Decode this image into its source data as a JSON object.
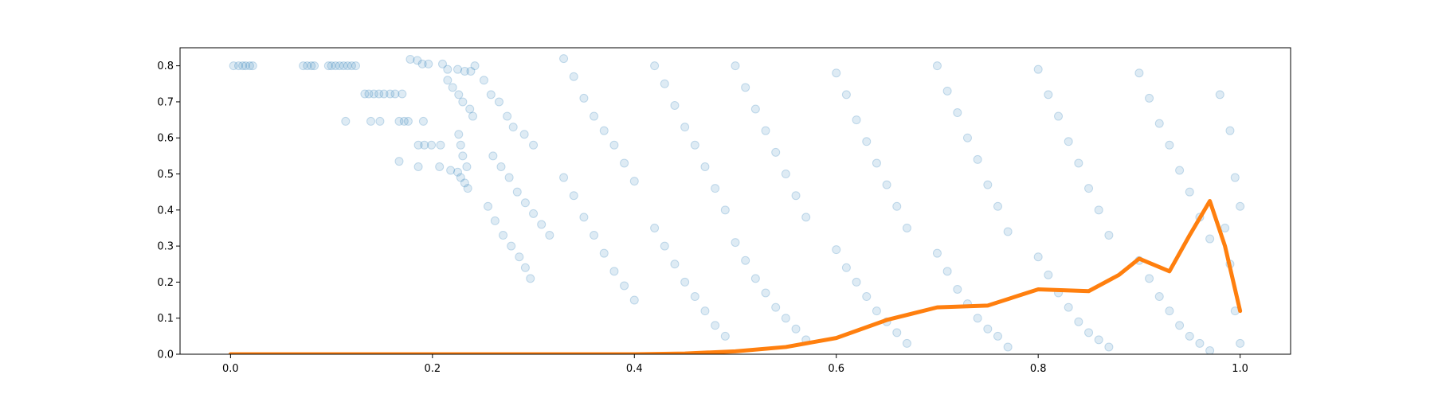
{
  "chart_data": {
    "type": "scatter",
    "title": "",
    "xlabel": "",
    "ylabel": "",
    "xlim": [
      -0.05,
      1.05
    ],
    "ylim": [
      0.0,
      0.85
    ],
    "xticks": [
      {
        "value": 0.0,
        "label": "0.0"
      },
      {
        "value": 0.2,
        "label": "0.2"
      },
      {
        "value": 0.4,
        "label": "0.4"
      },
      {
        "value": 0.6,
        "label": "0.6"
      },
      {
        "value": 0.8,
        "label": "0.8"
      },
      {
        "value": 1.0,
        "label": "1.0"
      }
    ],
    "yticks": [
      {
        "value": 0.0,
        "label": "0.0"
      },
      {
        "value": 0.1,
        "label": "0.1"
      },
      {
        "value": 0.2,
        "label": "0.2"
      },
      {
        "value": 0.3,
        "label": "0.3"
      },
      {
        "value": 0.4,
        "label": "0.4"
      },
      {
        "value": 0.5,
        "label": "0.5"
      },
      {
        "value": 0.6,
        "label": "0.6"
      },
      {
        "value": 0.7,
        "label": "0.7"
      },
      {
        "value": 0.8,
        "label": "0.8"
      }
    ],
    "grid": false,
    "legend": null,
    "series": [
      {
        "kind": "scatter",
        "color": "#1f77b4",
        "alpha": 0.15,
        "points": [
          [
            0.003,
            0.8
          ],
          [
            0.008,
            0.8
          ],
          [
            0.012,
            0.8
          ],
          [
            0.015,
            0.8
          ],
          [
            0.019,
            0.8
          ],
          [
            0.022,
            0.8
          ],
          [
            0.072,
            0.8
          ],
          [
            0.076,
            0.8
          ],
          [
            0.08,
            0.8
          ],
          [
            0.083,
            0.8
          ],
          [
            0.097,
            0.8
          ],
          [
            0.1,
            0.8
          ],
          [
            0.104,
            0.8
          ],
          [
            0.108,
            0.8
          ],
          [
            0.112,
            0.8
          ],
          [
            0.116,
            0.8
          ],
          [
            0.12,
            0.8
          ],
          [
            0.124,
            0.8
          ],
          [
            0.178,
            0.818
          ],
          [
            0.185,
            0.815
          ],
          [
            0.19,
            0.805
          ],
          [
            0.196,
            0.805
          ],
          [
            0.21,
            0.805
          ],
          [
            0.215,
            0.79
          ],
          [
            0.225,
            0.79
          ],
          [
            0.232,
            0.785
          ],
          [
            0.238,
            0.785
          ],
          [
            0.133,
            0.722
          ],
          [
            0.137,
            0.722
          ],
          [
            0.142,
            0.722
          ],
          [
            0.147,
            0.722
          ],
          [
            0.152,
            0.722
          ],
          [
            0.158,
            0.722
          ],
          [
            0.163,
            0.722
          ],
          [
            0.17,
            0.722
          ],
          [
            0.114,
            0.646
          ],
          [
            0.139,
            0.646
          ],
          [
            0.148,
            0.646
          ],
          [
            0.167,
            0.646
          ],
          [
            0.172,
            0.646
          ],
          [
            0.176,
            0.646
          ],
          [
            0.191,
            0.646
          ],
          [
            0.186,
            0.58
          ],
          [
            0.192,
            0.58
          ],
          [
            0.199,
            0.58
          ],
          [
            0.208,
            0.58
          ],
          [
            0.167,
            0.535
          ],
          [
            0.186,
            0.52
          ],
          [
            0.207,
            0.52
          ],
          [
            0.218,
            0.51
          ],
          [
            0.225,
            0.505
          ],
          [
            0.228,
            0.49
          ],
          [
            0.232,
            0.475
          ],
          [
            0.235,
            0.46
          ],
          [
            0.215,
            0.76
          ],
          [
            0.22,
            0.74
          ],
          [
            0.226,
            0.72
          ],
          [
            0.23,
            0.7
          ],
          [
            0.237,
            0.68
          ],
          [
            0.24,
            0.66
          ],
          [
            0.226,
            0.61
          ],
          [
            0.228,
            0.58
          ],
          [
            0.23,
            0.55
          ],
          [
            0.234,
            0.52
          ],
          [
            0.242,
            0.8
          ],
          [
            0.251,
            0.76
          ],
          [
            0.258,
            0.72
          ],
          [
            0.266,
            0.7
          ],
          [
            0.274,
            0.66
          ],
          [
            0.28,
            0.63
          ],
          [
            0.291,
            0.61
          ],
          [
            0.3,
            0.58
          ],
          [
            0.26,
            0.55
          ],
          [
            0.268,
            0.52
          ],
          [
            0.276,
            0.49
          ],
          [
            0.284,
            0.45
          ],
          [
            0.292,
            0.42
          ],
          [
            0.3,
            0.39
          ],
          [
            0.308,
            0.36
          ],
          [
            0.316,
            0.33
          ],
          [
            0.255,
            0.41
          ],
          [
            0.262,
            0.37
          ],
          [
            0.27,
            0.33
          ],
          [
            0.278,
            0.3
          ],
          [
            0.286,
            0.27
          ],
          [
            0.292,
            0.24
          ],
          [
            0.297,
            0.21
          ],
          [
            0.33,
            0.82
          ],
          [
            0.34,
            0.77
          ],
          [
            0.35,
            0.71
          ],
          [
            0.36,
            0.66
          ],
          [
            0.37,
            0.62
          ],
          [
            0.38,
            0.58
          ],
          [
            0.39,
            0.53
          ],
          [
            0.4,
            0.48
          ],
          [
            0.33,
            0.49
          ],
          [
            0.34,
            0.44
          ],
          [
            0.35,
            0.38
          ],
          [
            0.36,
            0.33
          ],
          [
            0.37,
            0.28
          ],
          [
            0.38,
            0.23
          ],
          [
            0.39,
            0.19
          ],
          [
            0.4,
            0.15
          ],
          [
            0.42,
            0.8
          ],
          [
            0.43,
            0.75
          ],
          [
            0.44,
            0.69
          ],
          [
            0.45,
            0.63
          ],
          [
            0.46,
            0.58
          ],
          [
            0.47,
            0.52
          ],
          [
            0.48,
            0.46
          ],
          [
            0.49,
            0.4
          ],
          [
            0.42,
            0.35
          ],
          [
            0.43,
            0.3
          ],
          [
            0.44,
            0.25
          ],
          [
            0.45,
            0.2
          ],
          [
            0.46,
            0.16
          ],
          [
            0.47,
            0.12
          ],
          [
            0.48,
            0.08
          ],
          [
            0.49,
            0.05
          ],
          [
            0.5,
            0.8
          ],
          [
            0.51,
            0.74
          ],
          [
            0.52,
            0.68
          ],
          [
            0.53,
            0.62
          ],
          [
            0.54,
            0.56
          ],
          [
            0.55,
            0.5
          ],
          [
            0.56,
            0.44
          ],
          [
            0.57,
            0.38
          ],
          [
            0.5,
            0.31
          ],
          [
            0.51,
            0.26
          ],
          [
            0.52,
            0.21
          ],
          [
            0.53,
            0.17
          ],
          [
            0.54,
            0.13
          ],
          [
            0.55,
            0.1
          ],
          [
            0.56,
            0.07
          ],
          [
            0.57,
            0.04
          ],
          [
            0.6,
            0.78
          ],
          [
            0.61,
            0.72
          ],
          [
            0.62,
            0.65
          ],
          [
            0.63,
            0.59
          ],
          [
            0.64,
            0.53
          ],
          [
            0.65,
            0.47
          ],
          [
            0.66,
            0.41
          ],
          [
            0.67,
            0.35
          ],
          [
            0.6,
            0.29
          ],
          [
            0.61,
            0.24
          ],
          [
            0.62,
            0.2
          ],
          [
            0.63,
            0.16
          ],
          [
            0.64,
            0.12
          ],
          [
            0.65,
            0.09
          ],
          [
            0.66,
            0.06
          ],
          [
            0.67,
            0.03
          ],
          [
            0.7,
            0.8
          ],
          [
            0.71,
            0.73
          ],
          [
            0.72,
            0.67
          ],
          [
            0.73,
            0.6
          ],
          [
            0.74,
            0.54
          ],
          [
            0.75,
            0.47
          ],
          [
            0.76,
            0.41
          ],
          [
            0.77,
            0.34
          ],
          [
            0.7,
            0.28
          ],
          [
            0.71,
            0.23
          ],
          [
            0.72,
            0.18
          ],
          [
            0.73,
            0.14
          ],
          [
            0.74,
            0.1
          ],
          [
            0.75,
            0.07
          ],
          [
            0.76,
            0.05
          ],
          [
            0.77,
            0.02
          ],
          [
            0.8,
            0.79
          ],
          [
            0.81,
            0.72
          ],
          [
            0.82,
            0.66
          ],
          [
            0.83,
            0.59
          ],
          [
            0.84,
            0.53
          ],
          [
            0.85,
            0.46
          ],
          [
            0.86,
            0.4
          ],
          [
            0.87,
            0.33
          ],
          [
            0.8,
            0.27
          ],
          [
            0.81,
            0.22
          ],
          [
            0.82,
            0.17
          ],
          [
            0.83,
            0.13
          ],
          [
            0.84,
            0.09
          ],
          [
            0.85,
            0.06
          ],
          [
            0.86,
            0.04
          ],
          [
            0.87,
            0.02
          ],
          [
            0.9,
            0.78
          ],
          [
            0.91,
            0.71
          ],
          [
            0.92,
            0.64
          ],
          [
            0.93,
            0.58
          ],
          [
            0.94,
            0.51
          ],
          [
            0.95,
            0.45
          ],
          [
            0.96,
            0.38
          ],
          [
            0.97,
            0.32
          ],
          [
            0.9,
            0.26
          ],
          [
            0.91,
            0.21
          ],
          [
            0.92,
            0.16
          ],
          [
            0.93,
            0.12
          ],
          [
            0.94,
            0.08
          ],
          [
            0.95,
            0.05
          ],
          [
            0.96,
            0.03
          ],
          [
            0.97,
            0.01
          ],
          [
            0.98,
            0.72
          ],
          [
            0.99,
            0.62
          ],
          [
            0.995,
            0.49
          ],
          [
            1.0,
            0.41
          ],
          [
            0.985,
            0.35
          ],
          [
            0.99,
            0.25
          ],
          [
            0.995,
            0.12
          ],
          [
            1.0,
            0.03
          ]
        ]
      },
      {
        "kind": "line",
        "color": "#ff7f0e",
        "alpha": 1.0,
        "points": [
          [
            0.0,
            0.0
          ],
          [
            0.2,
            0.0
          ],
          [
            0.4,
            0.0
          ],
          [
            0.45,
            0.002
          ],
          [
            0.5,
            0.008
          ],
          [
            0.55,
            0.02
          ],
          [
            0.6,
            0.045
          ],
          [
            0.65,
            0.095
          ],
          [
            0.7,
            0.13
          ],
          [
            0.75,
            0.135
          ],
          [
            0.8,
            0.18
          ],
          [
            0.85,
            0.175
          ],
          [
            0.88,
            0.22
          ],
          [
            0.9,
            0.265
          ],
          [
            0.93,
            0.23
          ],
          [
            0.95,
            0.33
          ],
          [
            0.97,
            0.425
          ],
          [
            0.985,
            0.3
          ],
          [
            1.0,
            0.12
          ]
        ]
      }
    ]
  }
}
